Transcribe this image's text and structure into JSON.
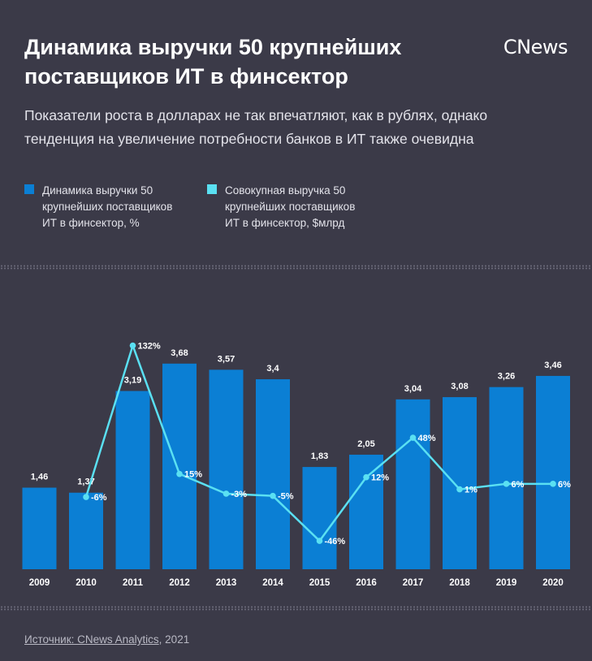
{
  "title": "Динамика выручки 50 крупнейших поставщиков ИТ в финсектор",
  "logo": "CNews",
  "subtitle": "Показатели роста в долларах не так впечатляют, как в рублях, однако тенденция на увеличение потребности банков в ИТ также очевидна",
  "legend": [
    {
      "label": "Динамика выручки 50 крупнейших поставщиков ИТ в финсектор, %",
      "color": "#0b7fd4"
    },
    {
      "label": "Совокупная выручка 50 крупнейших поставщиков ИТ в финсектор, $млрд",
      "color": "#5ae0f2"
    }
  ],
  "source": {
    "link_text": "Источник: CNews Analytics",
    "rest": ", 2021"
  },
  "colors": {
    "bar": "#0b7fd4",
    "line": "#5ae0f2",
    "background": "#3b3a48"
  },
  "chart_data": {
    "type": "bar",
    "categories": [
      "2009",
      "2010",
      "2011",
      "2012",
      "2013",
      "2014",
      "2015",
      "2016",
      "2017",
      "2018",
      "2019",
      "2020"
    ],
    "series": [
      {
        "type": "bar",
        "values": [
          1.46,
          1.37,
          3.19,
          3.68,
          3.57,
          3.4,
          1.83,
          2.05,
          3.04,
          3.08,
          3.26,
          3.46
        ],
        "labels": [
          "1,46",
          "1,37",
          "3,19",
          "3,68",
          "3,57",
          "3,4",
          "1,83",
          "2,05",
          "3,04",
          "3,08",
          "3,26",
          "3,46"
        ]
      },
      {
        "type": "line",
        "values": [
          null,
          -6,
          132,
          15,
          -3,
          -5,
          -46,
          12,
          48,
          1,
          6,
          6
        ],
        "labels": [
          "",
          "-6%",
          "132%",
          "15%",
          "-3%",
          "-5%",
          "-46%",
          "12%",
          "48%",
          "1%",
          "6%",
          "6%"
        ]
      }
    ],
    "bar_ylim": [
      0,
      4.2
    ],
    "line_ylim": [
      -60,
      145
    ]
  }
}
